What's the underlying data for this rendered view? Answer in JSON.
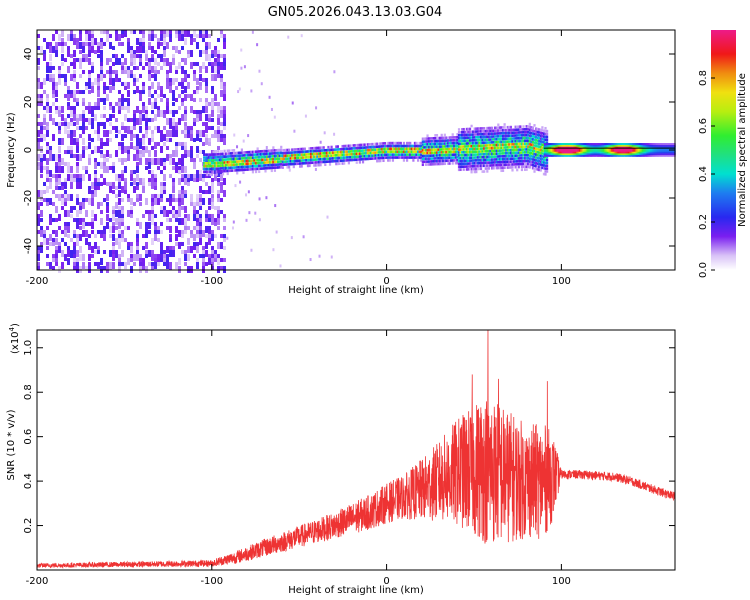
{
  "title": "GN05.2026.043.13.03.G04",
  "chart_data": [
    {
      "type": "heatmap",
      "name": "spectrogram",
      "xlabel": "Height of straight line (km)",
      "ylabel": "Frequency (Hz)",
      "xlim": [
        -200,
        165
      ],
      "ylim": [
        -50,
        50
      ],
      "xticks": [
        -200,
        -100,
        0,
        100
      ],
      "yticks": [
        -40,
        -20,
        0,
        20,
        40
      ],
      "colorbar": {
        "label": "Normalized spectral amplitude",
        "range": [
          0,
          1
        ],
        "ticks": [
          0.0,
          0.2,
          0.4,
          0.6,
          0.8
        ]
      },
      "ridge": {
        "description_points_x": [
          -100,
          -60,
          -20,
          0,
          20,
          50,
          80,
          90,
          165
        ],
        "description_points_y": [
          -5,
          -3,
          -1,
          0,
          0,
          1,
          2,
          0,
          0
        ],
        "noise_region_x": [
          -200,
          -92
        ],
        "carrier_line_x": [
          90,
          165
        ],
        "peaks": [
          {
            "x": 103,
            "y": 0,
            "amp": 1.0
          },
          {
            "x": 135,
            "y": 2,
            "amp": 0.9
          }
        ]
      }
    },
    {
      "type": "line",
      "name": "snr",
      "xlabel": "Height of straight line (km)",
      "ylabel": "SNR (10 * v/v)",
      "yscale_label": "(x10",
      "yscale_exp": "4",
      "yscale_close": ")",
      "xlim": [
        -200,
        165
      ],
      "ylim": [
        0,
        1.08
      ],
      "xticks": [
        -200,
        -100,
        0,
        100
      ],
      "yticks": [
        0.2,
        0.4,
        0.6,
        0.8,
        1.0
      ],
      "color": "#ee3333",
      "envelope": {
        "x": [
          -200,
          -150,
          -100,
          -85,
          -70,
          -50,
          -30,
          -10,
          0,
          10,
          20,
          30,
          40,
          50,
          55,
          60,
          70,
          80,
          90,
          95,
          100,
          110,
          130,
          140,
          150,
          165
        ],
        "mean": [
          0.02,
          0.025,
          0.03,
          0.06,
          0.1,
          0.15,
          0.2,
          0.26,
          0.3,
          0.33,
          0.36,
          0.4,
          0.44,
          0.45,
          0.46,
          0.45,
          0.42,
          0.4,
          0.4,
          0.42,
          0.43,
          0.43,
          0.42,
          0.4,
          0.37,
          0.33
        ],
        "noise": [
          0.01,
          0.012,
          0.015,
          0.03,
          0.04,
          0.05,
          0.06,
          0.08,
          0.09,
          0.1,
          0.14,
          0.18,
          0.24,
          0.3,
          0.34,
          0.34,
          0.3,
          0.26,
          0.26,
          0.2,
          0.02,
          0.02,
          0.02,
          0.02,
          0.02,
          0.02
        ]
      },
      "spikes": [
        {
          "x": 58,
          "y": 1.08
        },
        {
          "x": 49,
          "y": 0.88
        },
        {
          "x": 64,
          "y": 0.86
        },
        {
          "x": 92,
          "y": 0.85
        }
      ]
    }
  ]
}
